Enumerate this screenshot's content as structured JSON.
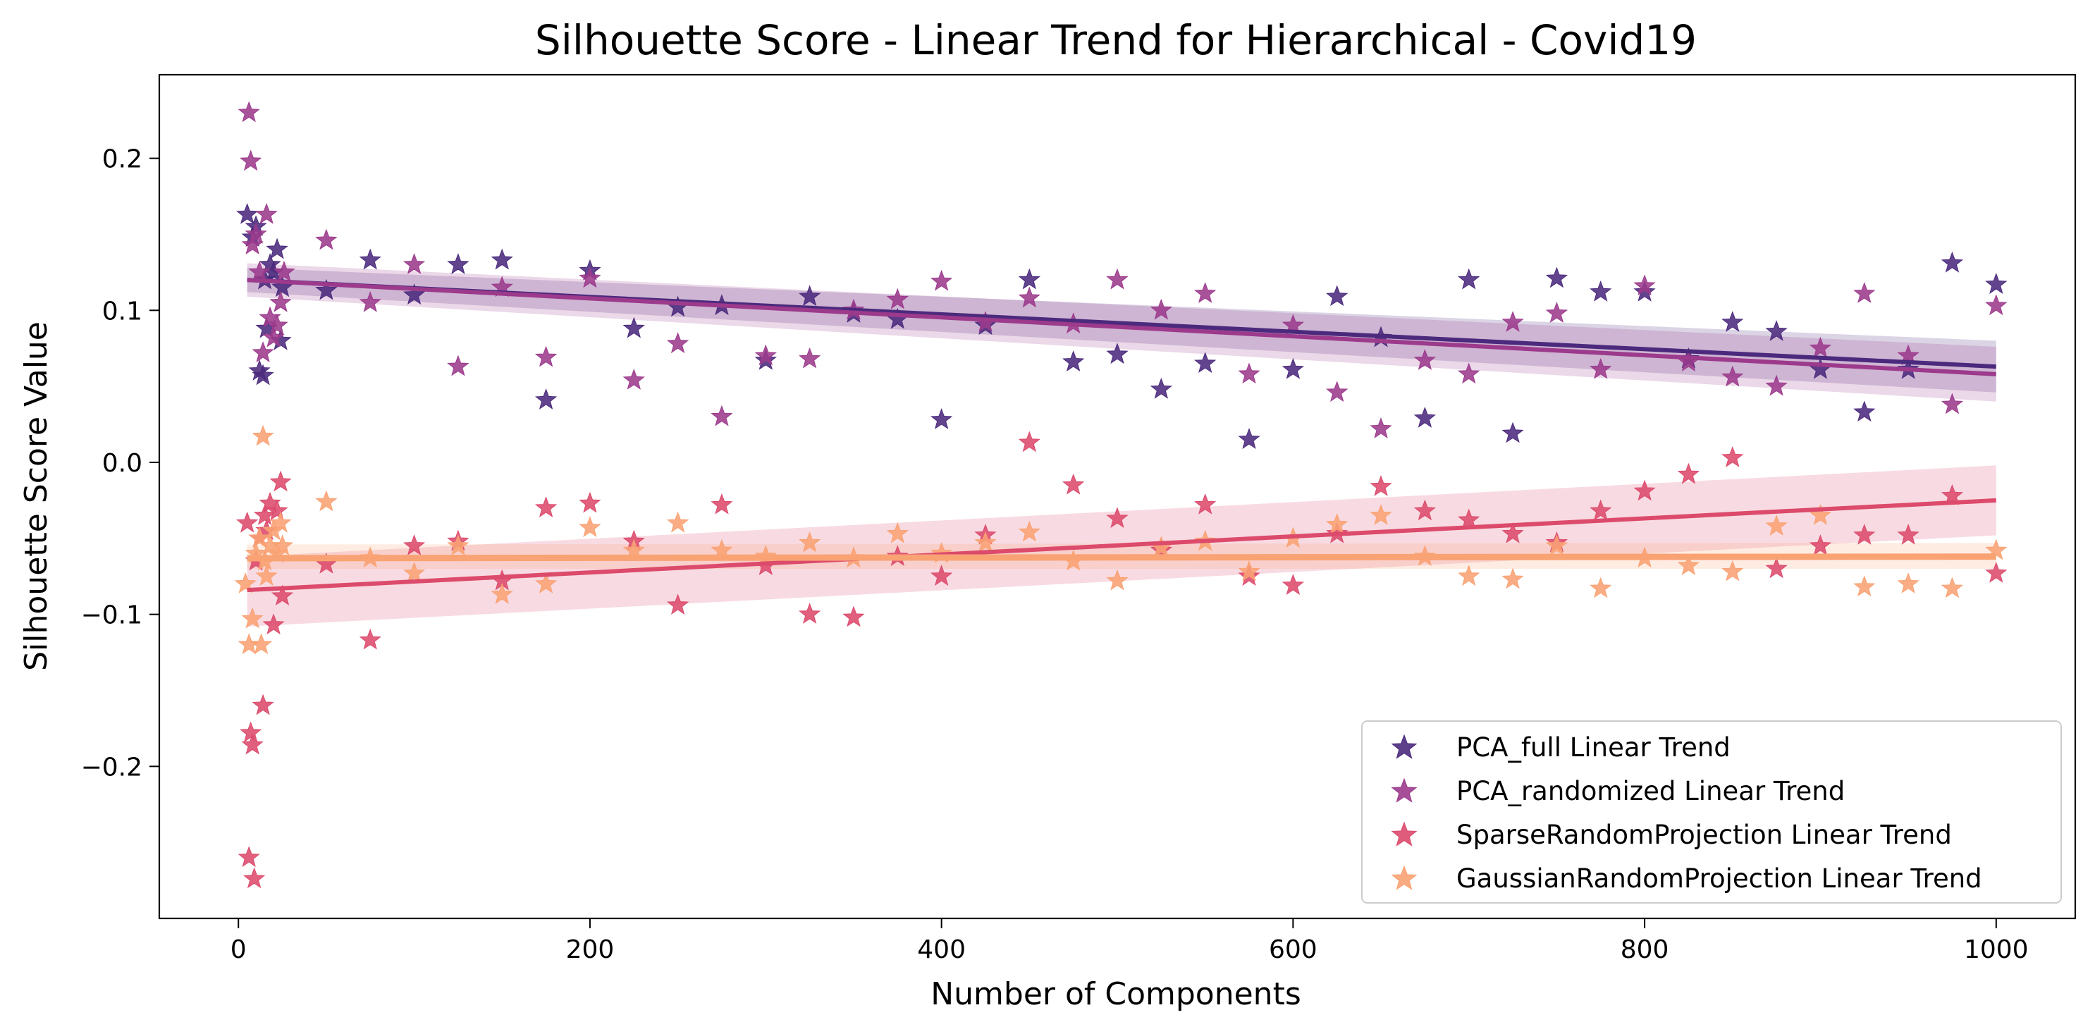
{
  "chart_data": {
    "type": "scatter",
    "title": "Silhouette Score - Linear Trend for Hierarchical - Covid19",
    "xlabel": "Number of Components",
    "ylabel": "Silhouette Score Value",
    "xlim": [
      -45,
      1045
    ],
    "ylim": [
      -0.3,
      0.255
    ],
    "xticks": [
      0,
      200,
      400,
      600,
      800,
      1000
    ],
    "xtick_labels": [
      "0",
      "200",
      "400",
      "600",
      "800",
      "1000"
    ],
    "yticks": [
      -0.2,
      -0.1,
      0.0,
      0.1,
      0.2
    ],
    "ytick_labels": [
      "−0.2",
      "−0.1",
      "0.0",
      "0.1",
      "0.2"
    ],
    "grid": false,
    "legend_position": "lower-right",
    "marker": "star",
    "series": [
      {
        "name": "PCA_full Linear Trend",
        "color": "#4b2a7d",
        "points": [
          [
            5,
            0.163
          ],
          [
            8,
            0.148
          ],
          [
            10,
            0.155
          ],
          [
            12,
            0.06
          ],
          [
            14,
            0.057
          ],
          [
            15,
            0.12
          ],
          [
            16,
            0.088
          ],
          [
            18,
            0.13
          ],
          [
            20,
            0.125
          ],
          [
            22,
            0.14
          ],
          [
            24,
            0.08
          ],
          [
            25,
            0.115
          ],
          [
            50,
            0.113
          ],
          [
            75,
            0.133
          ],
          [
            100,
            0.11
          ],
          [
            125,
            0.13
          ],
          [
            150,
            0.133
          ],
          [
            175,
            0.041
          ],
          [
            200,
            0.126
          ],
          [
            225,
            0.088
          ],
          [
            250,
            0.102
          ],
          [
            275,
            0.103
          ],
          [
            300,
            0.067
          ],
          [
            325,
            0.109
          ],
          [
            350,
            0.098
          ],
          [
            375,
            0.094
          ],
          [
            400,
            0.028
          ],
          [
            425,
            0.09
          ],
          [
            450,
            0.12
          ],
          [
            475,
            0.066
          ],
          [
            500,
            0.071
          ],
          [
            525,
            0.048
          ],
          [
            550,
            0.065
          ],
          [
            575,
            0.015
          ],
          [
            600,
            0.061
          ],
          [
            625,
            0.109
          ],
          [
            650,
            0.082
          ],
          [
            675,
            0.029
          ],
          [
            700,
            0.12
          ],
          [
            725,
            0.019
          ],
          [
            750,
            0.121
          ],
          [
            775,
            0.112
          ],
          [
            800,
            0.112
          ],
          [
            825,
            0.068
          ],
          [
            850,
            0.092
          ],
          [
            875,
            0.086
          ],
          [
            900,
            0.061
          ],
          [
            925,
            0.033
          ],
          [
            950,
            0.061
          ],
          [
            975,
            0.131
          ],
          [
            1000,
            0.117
          ]
        ],
        "trend": {
          "start": [
            5,
            0.12
          ],
          "end": [
            1000,
            0.063
          ],
          "ci_low_start": 0.112,
          "ci_high_start": 0.128,
          "ci_low_end": 0.046,
          "ci_high_end": 0.08
        }
      },
      {
        "name": "PCA_randomized Linear Trend",
        "color": "#9c3a8c",
        "points": [
          [
            6,
            0.23
          ],
          [
            7,
            0.198
          ],
          [
            8,
            0.143
          ],
          [
            10,
            0.15
          ],
          [
            12,
            0.125
          ],
          [
            14,
            0.072
          ],
          [
            16,
            0.163
          ],
          [
            18,
            0.095
          ],
          [
            20,
            0.082
          ],
          [
            22,
            0.09
          ],
          [
            24,
            0.105
          ],
          [
            26,
            0.125
          ],
          [
            50,
            0.146
          ],
          [
            75,
            0.105
          ],
          [
            100,
            0.13
          ],
          [
            125,
            0.063
          ],
          [
            150,
            0.115
          ],
          [
            175,
            0.069
          ],
          [
            200,
            0.121
          ],
          [
            225,
            0.054
          ],
          [
            250,
            0.078
          ],
          [
            275,
            0.03
          ],
          [
            300,
            0.07
          ],
          [
            325,
            0.068
          ],
          [
            350,
            0.1
          ],
          [
            375,
            0.107
          ],
          [
            400,
            0.119
          ],
          [
            425,
            0.092
          ],
          [
            450,
            0.108
          ],
          [
            475,
            0.091
          ],
          [
            500,
            0.12
          ],
          [
            525,
            0.1
          ],
          [
            550,
            0.111
          ],
          [
            575,
            0.058
          ],
          [
            600,
            0.09
          ],
          [
            625,
            0.046
          ],
          [
            650,
            0.022
          ],
          [
            675,
            0.067
          ],
          [
            700,
            0.058
          ],
          [
            725,
            0.092
          ],
          [
            750,
            0.098
          ],
          [
            775,
            0.061
          ],
          [
            800,
            0.116
          ],
          [
            825,
            0.066
          ],
          [
            850,
            0.056
          ],
          [
            875,
            0.05
          ],
          [
            900,
            0.075
          ],
          [
            925,
            0.111
          ],
          [
            950,
            0.07
          ],
          [
            975,
            0.038
          ],
          [
            1000,
            0.103
          ]
        ],
        "trend": {
          "start": [
            5,
            0.12
          ],
          "end": [
            1000,
            0.058
          ],
          "ci_low_start": 0.109,
          "ci_high_start": 0.131,
          "ci_low_end": 0.04,
          "ci_high_end": 0.076
        }
      },
      {
        "name": "SparseRandomProjection Linear Trend",
        "color": "#dc4a6c",
        "points": [
          [
            5,
            -0.04
          ],
          [
            6,
            -0.26
          ],
          [
            7,
            -0.178
          ],
          [
            8,
            -0.186
          ],
          [
            9,
            -0.274
          ],
          [
            10,
            -0.065
          ],
          [
            12,
            -0.05
          ],
          [
            14,
            -0.16
          ],
          [
            15,
            -0.035
          ],
          [
            16,
            -0.045
          ],
          [
            18,
            -0.027
          ],
          [
            20,
            -0.107
          ],
          [
            22,
            -0.032
          ],
          [
            24,
            -0.013
          ],
          [
            25,
            -0.088
          ],
          [
            50,
            -0.067
          ],
          [
            75,
            -0.117
          ],
          [
            100,
            -0.055
          ],
          [
            125,
            -0.052
          ],
          [
            150,
            -0.078
          ],
          [
            175,
            -0.03
          ],
          [
            200,
            -0.027
          ],
          [
            225,
            -0.052
          ],
          [
            250,
            -0.094
          ],
          [
            275,
            -0.028
          ],
          [
            300,
            -0.068
          ],
          [
            325,
            -0.1
          ],
          [
            350,
            -0.102
          ],
          [
            375,
            -0.062
          ],
          [
            400,
            -0.075
          ],
          [
            425,
            -0.048
          ],
          [
            450,
            0.013
          ],
          [
            475,
            -0.015
          ],
          [
            500,
            -0.037
          ],
          [
            525,
            -0.058
          ],
          [
            550,
            -0.028
          ],
          [
            575,
            -0.075
          ],
          [
            600,
            -0.081
          ],
          [
            625,
            -0.047
          ],
          [
            650,
            -0.016
          ],
          [
            675,
            -0.032
          ],
          [
            700,
            -0.038
          ],
          [
            725,
            -0.047
          ],
          [
            750,
            -0.053
          ],
          [
            775,
            -0.032
          ],
          [
            800,
            -0.019
          ],
          [
            825,
            -0.008
          ],
          [
            850,
            0.003
          ],
          [
            875,
            -0.07
          ],
          [
            900,
            -0.055
          ],
          [
            925,
            -0.048
          ],
          [
            950,
            -0.048
          ],
          [
            975,
            -0.022
          ],
          [
            1000,
            -0.073
          ]
        ],
        "trend": {
          "start": [
            5,
            -0.084
          ],
          "end": [
            1000,
            -0.025
          ],
          "ci_low_start": -0.108,
          "ci_high_start": -0.062,
          "ci_low_end": -0.048,
          "ci_high_end": -0.002
        }
      },
      {
        "name": "GaussianRandomProjection Linear Trend",
        "color": "#f9a273",
        "points": [
          [
            4,
            -0.08
          ],
          [
            6,
            -0.12
          ],
          [
            8,
            -0.103
          ],
          [
            10,
            -0.06
          ],
          [
            12,
            -0.05
          ],
          [
            13,
            -0.12
          ],
          [
            14,
            0.017
          ],
          [
            15,
            -0.065
          ],
          [
            16,
            -0.075
          ],
          [
            18,
            -0.055
          ],
          [
            20,
            -0.045
          ],
          [
            22,
            -0.06
          ],
          [
            24,
            -0.04
          ],
          [
            25,
            -0.055
          ],
          [
            50,
            -0.026
          ],
          [
            75,
            -0.063
          ],
          [
            100,
            -0.073
          ],
          [
            125,
            -0.055
          ],
          [
            150,
            -0.087
          ],
          [
            175,
            -0.08
          ],
          [
            200,
            -0.043
          ],
          [
            225,
            -0.058
          ],
          [
            250,
            -0.04
          ],
          [
            275,
            -0.058
          ],
          [
            300,
            -0.062
          ],
          [
            325,
            -0.053
          ],
          [
            350,
            -0.063
          ],
          [
            375,
            -0.047
          ],
          [
            400,
            -0.06
          ],
          [
            425,
            -0.053
          ],
          [
            450,
            -0.046
          ],
          [
            475,
            -0.065
          ],
          [
            500,
            -0.078
          ],
          [
            525,
            -0.056
          ],
          [
            550,
            -0.052
          ],
          [
            575,
            -0.072
          ],
          [
            600,
            -0.05
          ],
          [
            625,
            -0.041
          ],
          [
            650,
            -0.035
          ],
          [
            675,
            -0.062
          ],
          [
            700,
            -0.075
          ],
          [
            725,
            -0.077
          ],
          [
            750,
            -0.055
          ],
          [
            775,
            -0.083
          ],
          [
            800,
            -0.063
          ],
          [
            825,
            -0.068
          ],
          [
            850,
            -0.072
          ],
          [
            875,
            -0.042
          ],
          [
            900,
            -0.035
          ],
          [
            925,
            -0.082
          ],
          [
            950,
            -0.08
          ],
          [
            975,
            -0.083
          ],
          [
            1000,
            -0.058
          ]
        ],
        "trend": {
          "start": [
            5,
            -0.063
          ],
          "end": [
            1000,
            -0.062
          ],
          "ci_low_start": -0.07,
          "ci_high_start": -0.054,
          "ci_low_end": -0.07,
          "ci_high_end": -0.053
        }
      }
    ]
  }
}
